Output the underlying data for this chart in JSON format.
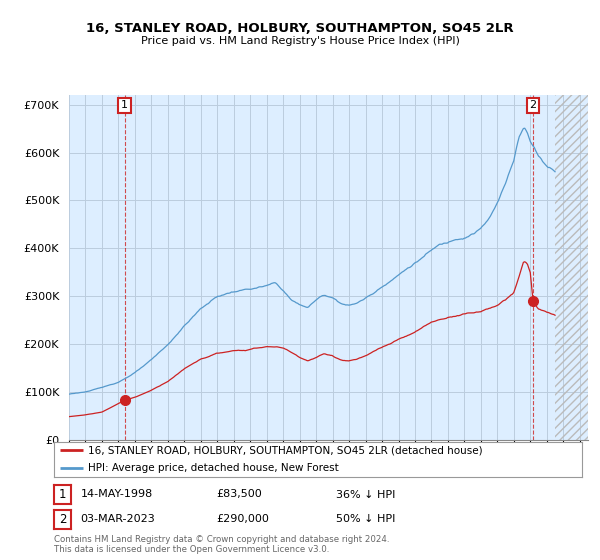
{
  "title": "16, STANLEY ROAD, HOLBURY, SOUTHAMPTON, SO45 2LR",
  "subtitle": "Price paid vs. HM Land Registry's House Price Index (HPI)",
  "background_color": "#ffffff",
  "chart_bg_color": "#ddeeff",
  "grid_color": "#bbccdd",
  "hpi_color": "#5599cc",
  "price_color": "#cc2222",
  "sale1_date_label": "14-MAY-1998",
  "sale1_price": 83500,
  "sale1_note": "36% ↓ HPI",
  "sale2_date_label": "03-MAR-2023",
  "sale2_price": 290000,
  "sale2_note": "50% ↓ HPI",
  "legend_label1": "16, STANLEY ROAD, HOLBURY, SOUTHAMPTON, SO45 2LR (detached house)",
  "legend_label2": "HPI: Average price, detached house, New Forest",
  "footer": "Contains HM Land Registry data © Crown copyright and database right 2024.\nThis data is licensed under the Open Government Licence v3.0.",
  "ylim": [
    0,
    720000
  ],
  "yticks": [
    0,
    100000,
    200000,
    300000,
    400000,
    500000,
    600000,
    700000
  ],
  "sale1_year": 1998.37,
  "sale2_year": 2023.17,
  "xmin": 1995.0,
  "xmax": 2026.5,
  "data_end_year": 2024.5
}
